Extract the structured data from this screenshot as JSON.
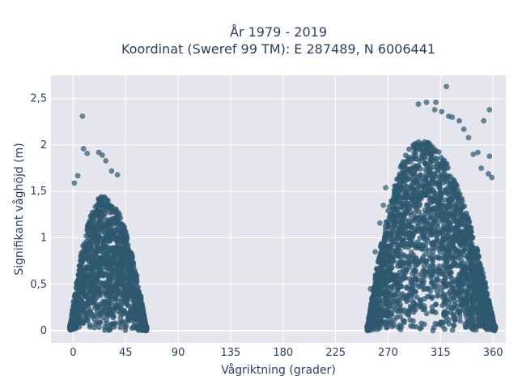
{
  "chart_data": {
    "type": "scatter",
    "title_lines": [
      "År 1979 - 2019",
      "Koordinat (Sweref 99 TM): E 287489, N 6006441"
    ],
    "xlabel": "Vågriktning (grader)",
    "ylabel": "Signifikant våghöjd (m)",
    "xlim": [
      -19,
      371
    ],
    "ylim": [
      -0.13,
      2.75
    ],
    "x_ticks": [
      0,
      45,
      90,
      135,
      180,
      225,
      270,
      315,
      360
    ],
    "x_tick_labels": [
      "0",
      "45",
      "90",
      "135",
      "180",
      "225",
      "270",
      "315",
      "360"
    ],
    "y_ticks": [
      0,
      0.5,
      1,
      1.5,
      2,
      2.5
    ],
    "y_tick_labels": [
      "0",
      "0,5",
      "1",
      "1,5",
      "2",
      "2,5"
    ],
    "grid": true,
    "background": "#e5e5ee",
    "marker_color": "#2f5870",
    "series": [
      {
        "clusters": [
          {
            "x_range": [
              -3,
              63
            ],
            "peak_x": 26,
            "peak_height": 1.45,
            "falloff_left": 29,
            "falloff_right": 37
          },
          {
            "x_range": [
              252,
              362
            ],
            "peak_x": 298,
            "peak_height": 2.05,
            "falloff_left": 46,
            "falloff_right": 64
          }
        ],
        "outliers": [
          {
            "x": 8,
            "y": 2.31
          },
          {
            "x": 9,
            "y": 1.96
          },
          {
            "x": 12,
            "y": 1.91
          },
          {
            "x": 22,
            "y": 1.92
          },
          {
            "x": 25,
            "y": 1.89
          },
          {
            "x": 28,
            "y": 1.83
          },
          {
            "x": 4,
            "y": 1.67
          },
          {
            "x": 1,
            "y": 1.59
          },
          {
            "x": 33,
            "y": 1.72
          },
          {
            "x": 38,
            "y": 1.68
          },
          {
            "x": 47,
            "y": 0.55
          },
          {
            "x": 53,
            "y": 0.28
          },
          {
            "x": 58,
            "y": 0.1
          },
          {
            "x": 63,
            "y": 0.03
          },
          {
            "x": 320,
            "y": 2.63
          },
          {
            "x": 296,
            "y": 2.44
          },
          {
            "x": 303,
            "y": 2.46
          },
          {
            "x": 311,
            "y": 2.46
          },
          {
            "x": 310,
            "y": 2.38
          },
          {
            "x": 316,
            "y": 2.36
          },
          {
            "x": 322,
            "y": 2.31
          },
          {
            "x": 325,
            "y": 2.3
          },
          {
            "x": 331,
            "y": 2.26
          },
          {
            "x": 352,
            "y": 2.26
          },
          {
            "x": 357,
            "y": 2.38
          },
          {
            "x": 335,
            "y": 2.17
          },
          {
            "x": 339,
            "y": 2.08
          },
          {
            "x": 343,
            "y": 1.9
          },
          {
            "x": 347,
            "y": 1.92
          },
          {
            "x": 350,
            "y": 1.75
          },
          {
            "x": 356,
            "y": 1.69
          },
          {
            "x": 359,
            "y": 1.65
          },
          {
            "x": 357,
            "y": 1.88
          },
          {
            "x": 268,
            "y": 1.54
          },
          {
            "x": 266,
            "y": 1.35
          },
          {
            "x": 263,
            "y": 1.16
          },
          {
            "x": 259,
            "y": 0.85
          },
          {
            "x": 255,
            "y": 0.45
          },
          {
            "x": 252,
            "y": 0.05
          }
        ]
      }
    ]
  }
}
